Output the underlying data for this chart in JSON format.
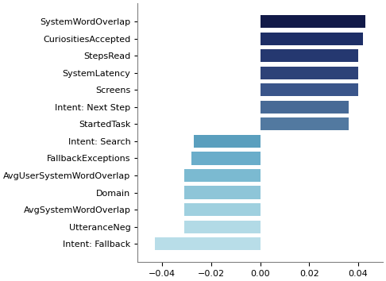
{
  "categories": [
    "Intent: Fallback",
    "UtteranceNeg",
    "AvgSystemWordOverlap",
    "Domain",
    "AvgUserSystemWordOverlap",
    "FallbackExceptions",
    "Intent: Search",
    "StartedTask",
    "Intent: Next Step",
    "Screens",
    "SystemLatency",
    "StepsRead",
    "CuriositiesAccepted",
    "SystemWordOverlap"
  ],
  "values": [
    -0.043,
    -0.031,
    -0.031,
    -0.031,
    -0.031,
    -0.028,
    -0.027,
    0.036,
    0.036,
    0.04,
    0.04,
    0.04,
    0.042,
    0.043
  ],
  "colors": [
    "#b8dde8",
    "#b2dae6",
    "#9fd0df",
    "#8ec5d8",
    "#7bbad1",
    "#6aadca",
    "#5a9fbe",
    "#5279a0",
    "#476a96",
    "#3a558a",
    "#2d4278",
    "#253870",
    "#1d2e66",
    "#121a48"
  ],
  "xlim": [
    -0.05,
    0.05
  ],
  "xticks": [
    -0.04,
    -0.02,
    0.0,
    0.02,
    0.04
  ],
  "background_color": "#ffffff",
  "tick_fontsize": 8,
  "label_fontsize": 8
}
